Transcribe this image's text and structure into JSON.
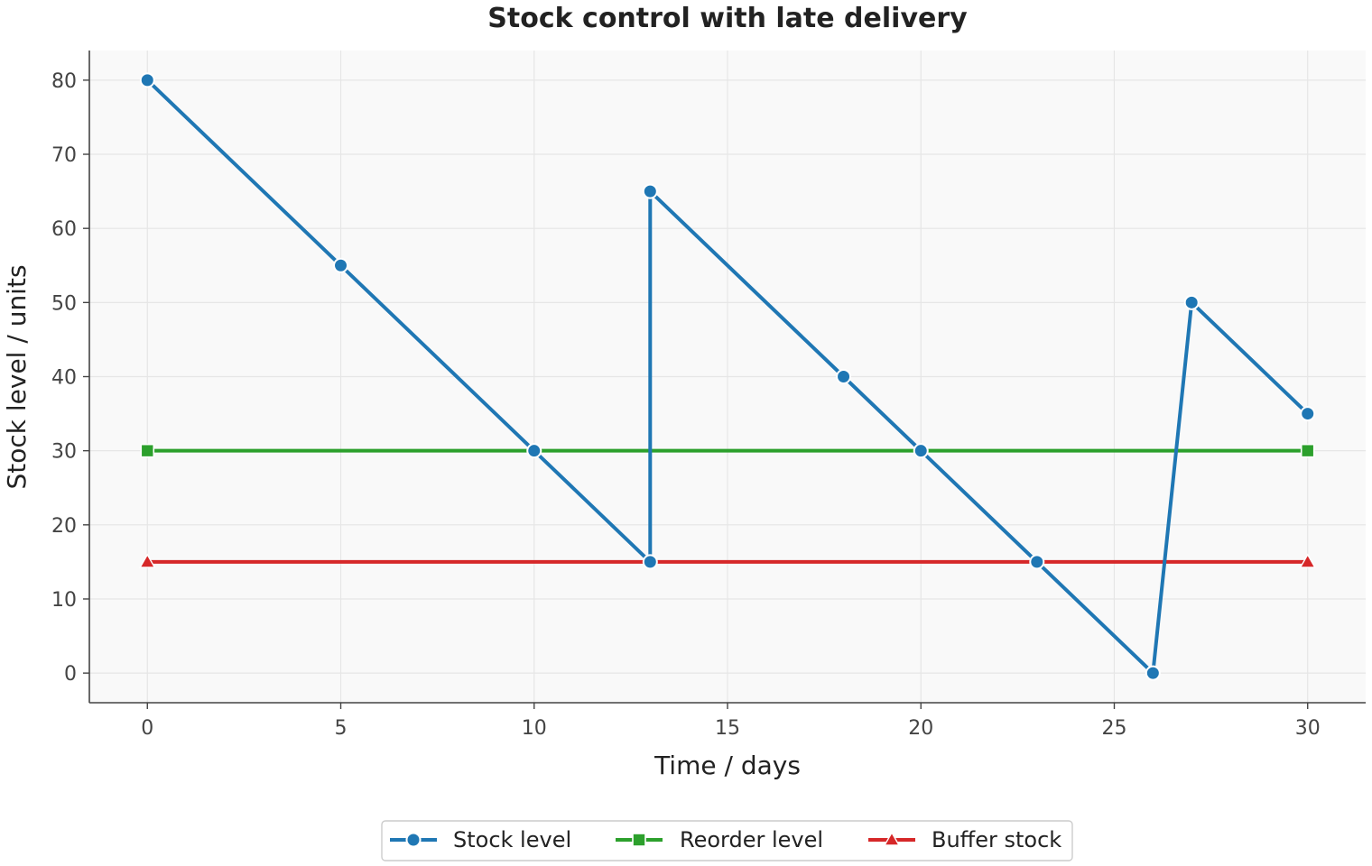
{
  "chart_data": {
    "type": "line",
    "title": "Stock control with late delivery",
    "xlabel": "Time / days",
    "ylabel": "Stock level / units",
    "xlim": [
      -1.5,
      31.5
    ],
    "ylim": [
      -4,
      84
    ],
    "xticks": [
      0,
      5,
      10,
      15,
      20,
      25,
      30
    ],
    "yticks": [
      0,
      10,
      20,
      30,
      40,
      50,
      60,
      70,
      80
    ],
    "grid": true,
    "legend_position": "bottom-center",
    "series": [
      {
        "name": "Stock level",
        "color": "#1f77b4",
        "marker": "circle",
        "x": [
          0,
          5,
          10,
          13,
          13,
          18,
          20,
          23,
          26,
          27,
          30
        ],
        "y": [
          80,
          55,
          30,
          15,
          65,
          40,
          30,
          15,
          0,
          50,
          35
        ]
      },
      {
        "name": "Reorder level",
        "color": "#2ca02c",
        "marker": "square",
        "x": [
          0,
          30
        ],
        "y": [
          30,
          30
        ]
      },
      {
        "name": "Buffer stock",
        "color": "#d62728",
        "marker": "triangle",
        "x": [
          0,
          30
        ],
        "y": [
          15,
          15
        ]
      }
    ]
  }
}
